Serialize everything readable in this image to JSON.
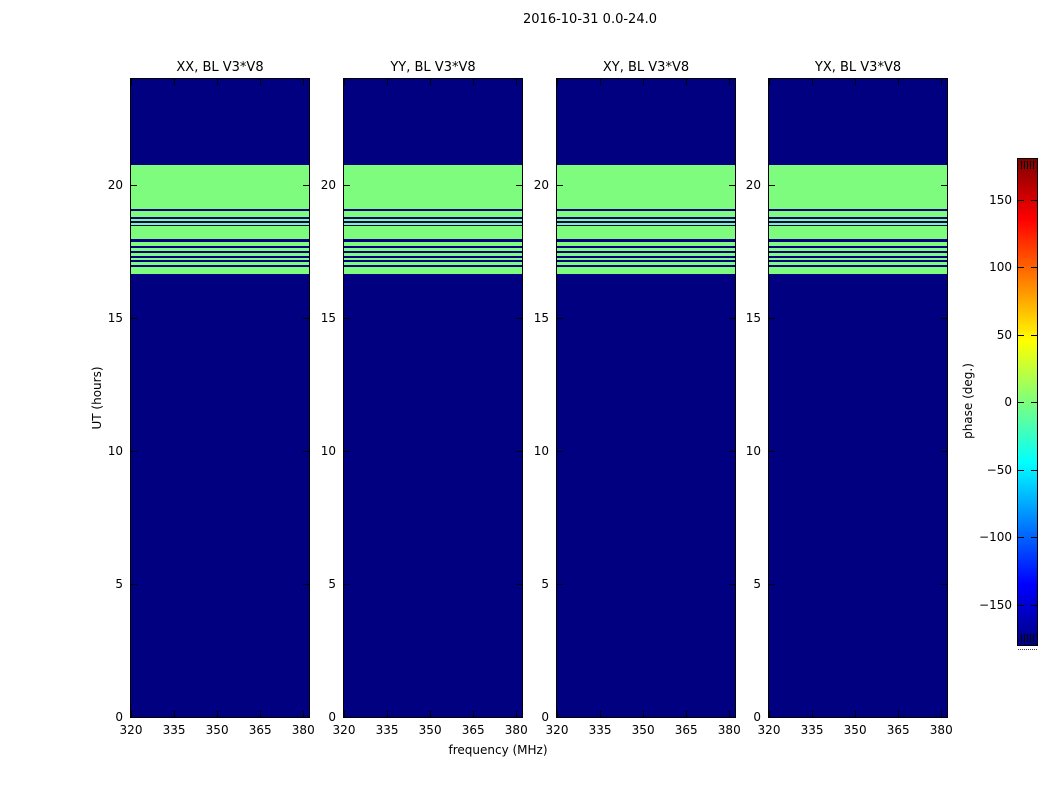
{
  "figure": {
    "suptitle": "2016-10-31 0.0-24.0",
    "xlabel": "frequency (MHz)",
    "ylabel": "UT (hours)"
  },
  "chart_data": {
    "type": "heatmap",
    "title": "2016-10-31 0.0-24.0",
    "xlabel": "frequency (MHz)",
    "ylabel": "UT (hours)",
    "panels": [
      {
        "title": "XX, BL V3*V8"
      },
      {
        "title": "YY, BL V3*V8"
      },
      {
        "title": "XY, BL V3*V8"
      },
      {
        "title": "YX, BL V3*V8"
      }
    ],
    "x_axis": {
      "ticks": [
        320,
        335,
        350,
        365,
        380
      ],
      "range": [
        320,
        382
      ]
    },
    "y_axis": {
      "ticks": [
        0,
        5,
        10,
        15,
        20
      ],
      "range": [
        0,
        24
      ]
    },
    "values": {
      "background_phase_deg": -180,
      "band_phase_deg": 0,
      "band_ut_range": [
        16.66,
        20.75
      ],
      "band_gaps_ut": [
        [
          19.05,
          19.12
        ],
        [
          18.74,
          18.82
        ],
        [
          18.59,
          18.67
        ],
        [
          18.47,
          18.52
        ],
        [
          17.86,
          17.99
        ],
        [
          17.64,
          17.72
        ],
        [
          17.46,
          17.54
        ],
        [
          17.28,
          17.36
        ],
        [
          17.11,
          17.19
        ],
        [
          16.91,
          17.01
        ]
      ]
    },
    "colorbar": {
      "label": "phase (deg.)",
      "ticks": [
        150,
        100,
        50,
        0,
        -50,
        -100,
        -150
      ],
      "range": [
        -180,
        180
      ],
      "colormap": "jet"
    },
    "colors": {
      "background": "#ffffff",
      "phase_min_navy": "#000080",
      "phase_zero_green": "#7dfc7d",
      "frame": "#000000",
      "jet_stops": [
        {
          "pos": 0.0,
          "color": "#00007f"
        },
        {
          "pos": 0.125,
          "color": "#0000ff"
        },
        {
          "pos": 0.375,
          "color": "#00ffff"
        },
        {
          "pos": 0.5,
          "color": "#7dff7d"
        },
        {
          "pos": 0.625,
          "color": "#ffff00"
        },
        {
          "pos": 0.875,
          "color": "#ff0000"
        },
        {
          "pos": 1.0,
          "color": "#7f0000"
        }
      ]
    }
  }
}
